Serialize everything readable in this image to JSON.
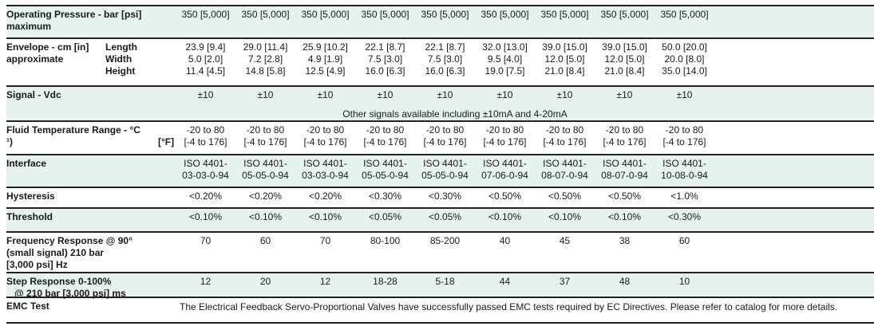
{
  "rows": [
    {
      "label": "Operating Pressure - bar [psi]\nmaximum",
      "values": [
        "350 [5,000]",
        "350 [5,000]",
        "350 [5,000]",
        "350 [5,000]",
        "350 [5,000]",
        "350 [5,000]",
        "350 [5,000]",
        "350 [5,000]",
        "350 [5,000]"
      ]
    },
    {
      "label": "Envelope - cm [in]\napproximate",
      "sublabel": "Length\nWidth\nHeight",
      "values": [
        "23.9 [9.4]\n5.0 [2.0]\n11.4 [4.5]",
        "29.0 [11.4]\n7.2 [2.8]\n14.8 [5.8]",
        "25.9 [10.2]\n4.9 [1.9]\n12.5 [4.9]",
        "22.1 [8.7]\n7.5 [3.0]\n16.0 [6.3]",
        "22.1 [8.7]\n7.5 [3.0]\n16.0 [6.3]",
        "32.0 [13.0]\n9.5 [4.0]\n19.0 [7.5]",
        "39.0 [15.0]\n12.0 [5.0]\n21.0 [8.4]",
        "39.0 [15.0]\n12.0 [5.0]\n21.0 [8.4]",
        "50.0 [20.0]\n20.0 [8.0]\n35.0 [14.0]"
      ]
    },
    {
      "label": "Signal - Vdc",
      "values": [
        "±10",
        "±10",
        "±10",
        "±10",
        "±10",
        "±10",
        "±10",
        "±10",
        "±10"
      ],
      "note": "Other signals available including ±10mA and 4-20mA"
    },
    {
      "label": "Fluid Temperature Range - °C\n¹)",
      "sublabel_right": "[°F]",
      "values": [
        "-20 to 80\n[-4 to 176]",
        "-20 to 80\n[-4 to 176]",
        "-20 to 80\n[-4 to 176]",
        "-20 to 80\n[-4 to 176]",
        "-20 to 80\n[-4 to 176]",
        "-20 to 80\n[-4 to 176]",
        "-20 to 80\n[-4 to 176]",
        "-20 to 80\n[-4 to 176]",
        "-20 to 80\n[-4 to 176]"
      ]
    },
    {
      "label": "Interface",
      "values": [
        "ISO 4401-\n03-03-0-94",
        "ISO 4401-\n05-05-0-94",
        "ISO 4401-\n03-03-0-94",
        "ISO 4401-\n05-05-0-94",
        "ISO 4401-\n05-05-0-94",
        "ISO 4401-\n07-06-0-94",
        "ISO 4401-\n08-07-0-94",
        "ISO 4401-\n08-07-0-94",
        "ISO 4401-\n10-08-0-94"
      ]
    },
    {
      "label": "Hysteresis",
      "values": [
        "<0.20%",
        "<0.20%",
        "<0.20%",
        "<0.30%",
        "<0.30%",
        "<0.50%",
        "<0.50%",
        "<0.50%",
        "<1.0%"
      ]
    },
    {
      "label": "Threshold",
      "values": [
        "<0.10%",
        "<0.10%",
        "<0.10%",
        "<0.05%",
        "<0.05%",
        "<0.10%",
        "<0.10%",
        "<0.10%",
        "<0.30%"
      ]
    },
    {
      "label": "Frequency Response @ 90°\n(small signal) 210 bar\n[3,000 psi] Hz",
      "values": [
        "70",
        "60",
        "70",
        "80-100",
        "85-200",
        "40",
        "45",
        "38",
        "60"
      ]
    },
    {
      "label": "Step Response 0-100%\n   @ 210 bar [3,000 psi] ms",
      "values": [
        "12",
        "20",
        "12",
        "18-28",
        "5-18",
        "44",
        "37",
        "48",
        "10"
      ]
    },
    {
      "label": "EMC Test",
      "note": "The Electrical Feedback Servo-Proportional Valves have successfully passed EMC tests required by EC Directives. Please refer to catalog for more details."
    }
  ],
  "colors": {
    "band": "#e6f2ed",
    "rule": "#222222"
  }
}
